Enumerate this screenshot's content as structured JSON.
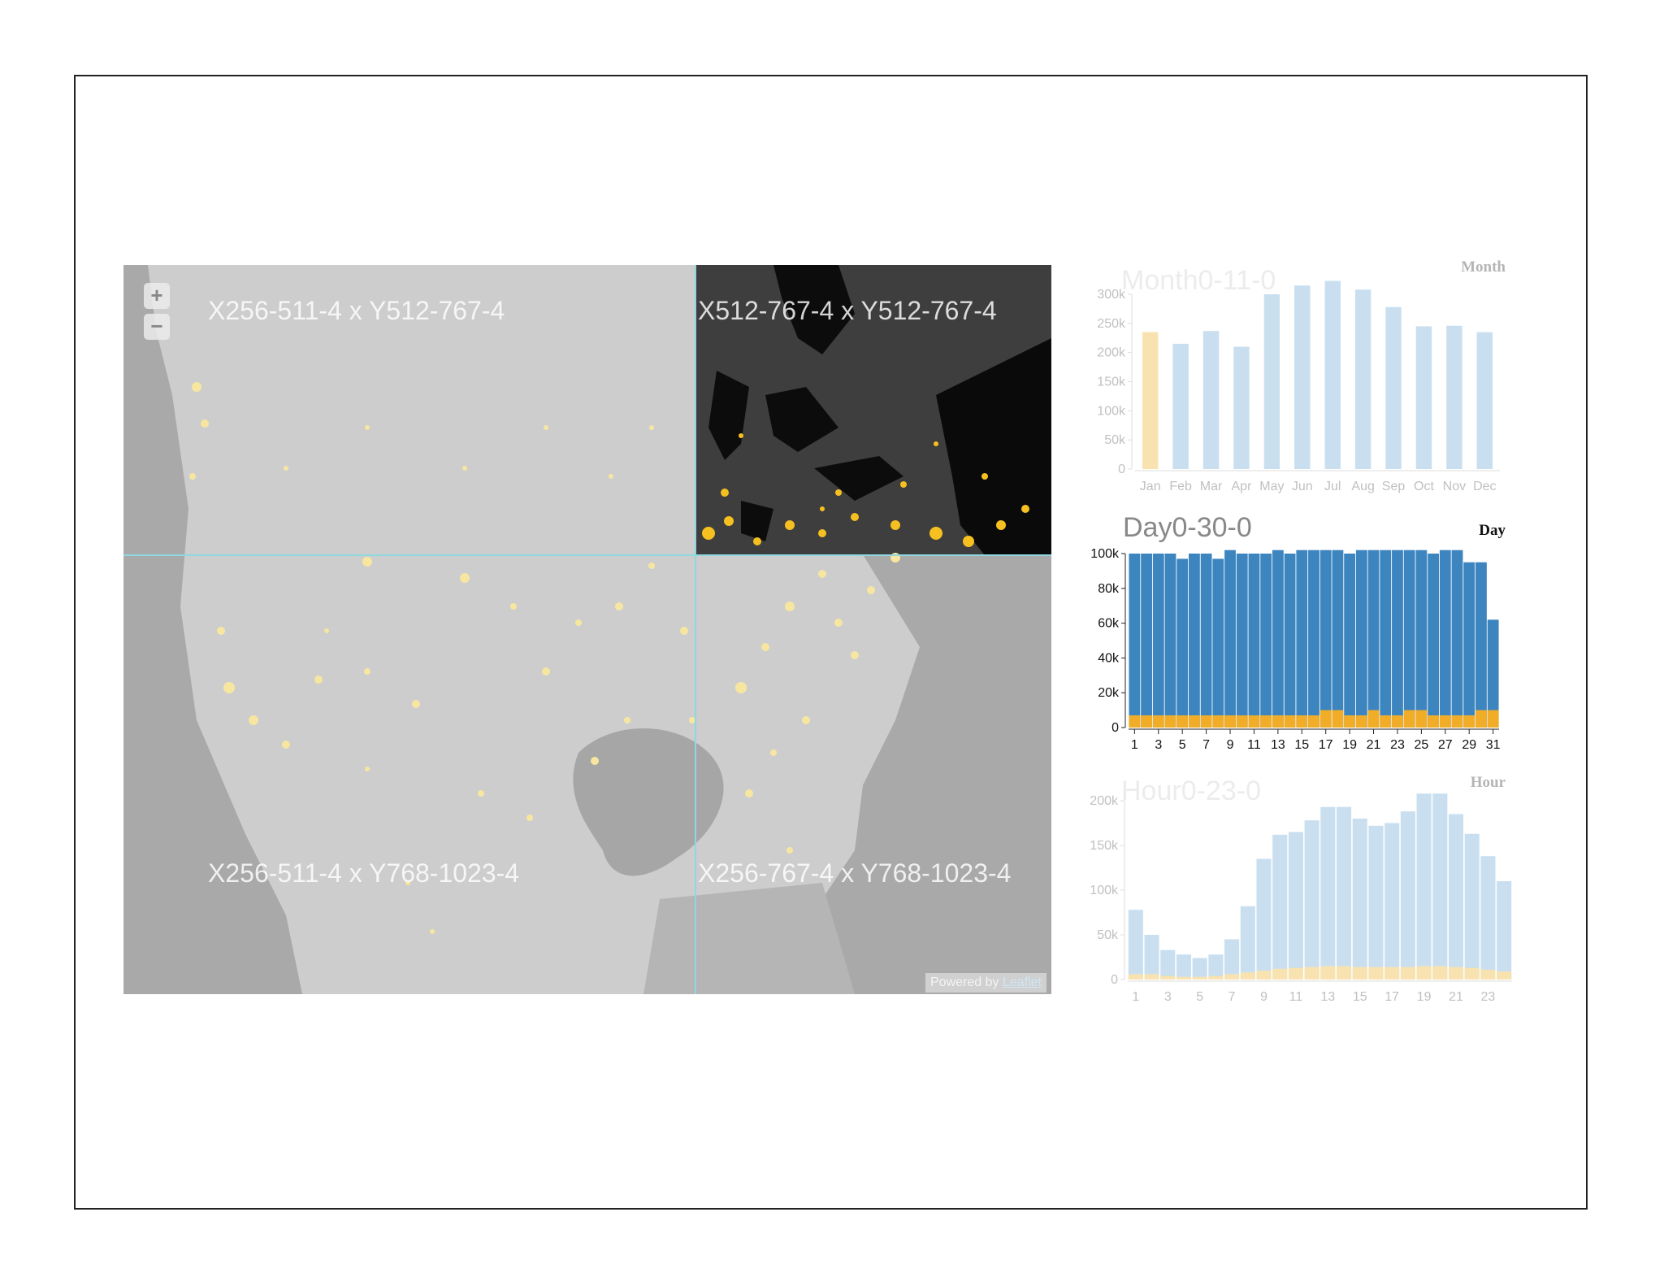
{
  "map": {
    "zoom_in": "+",
    "zoom_out": "−",
    "tiles": [
      {
        "label": "X256-511-4 x Y512-767-4"
      },
      {
        "label": "X512-767-4 x Y512-767-4"
      },
      {
        "label": "X256-511-4 x Y768-1023-4"
      },
      {
        "label": "X256-767-4 x Y768-1023-4"
      }
    ],
    "attribution_prefix": "Powered by",
    "attribution_link": "Leaflet"
  },
  "colors": {
    "map_land": "#c9c9c9",
    "map_water": "#9c9c9c",
    "selected_tile": "#3e3e3e",
    "grid_line": "#8fd8e0",
    "dots_faded": "#f7e6a0",
    "dots_active": "#f5c020",
    "bar_faded": "#c9dff0",
    "bar_highlight": "#f8e3b0",
    "bar_active": "#3d85bf",
    "bar_orange": "#f2ad28"
  },
  "chart_data": [
    {
      "type": "bar",
      "title": "Month0-11-0",
      "corner_label": "Month",
      "categories": [
        "Jan",
        "Feb",
        "Mar",
        "Apr",
        "May",
        "Jun",
        "Jul",
        "Aug",
        "Sep",
        "Oct",
        "Nov",
        "Dec"
      ],
      "values": [
        235000,
        215000,
        237000,
        210000,
        300000,
        315000,
        323000,
        308000,
        278000,
        245000,
        246000,
        235000
      ],
      "highlighted": [
        "Jan"
      ],
      "ylim": [
        0,
        300000
      ],
      "yticks": [
        "0",
        "50k",
        "100k",
        "150k",
        "200k",
        "250k",
        "300k"
      ],
      "grid": false
    },
    {
      "type": "bar",
      "title": "Day0-30-0",
      "corner_label": "Day",
      "categories": [
        1,
        2,
        3,
        4,
        5,
        6,
        7,
        8,
        9,
        10,
        11,
        12,
        13,
        14,
        15,
        16,
        17,
        18,
        19,
        20,
        21,
        22,
        23,
        24,
        25,
        26,
        27,
        28,
        29,
        30,
        31
      ],
      "series": [
        {
          "values": [
            100000,
            100000,
            100000,
            100000,
            97000,
            100000,
            100000,
            97000,
            102000,
            100000,
            100000,
            100000,
            102000,
            100000,
            102000,
            102000,
            102000,
            102000,
            100000,
            102000,
            102000,
            102000,
            102000,
            102000,
            102000,
            100000,
            102000,
            102000,
            95000,
            95000,
            62000
          ]
        },
        {
          "values": [
            7000,
            7000,
            7000,
            7000,
            7000,
            7000,
            7000,
            7000,
            7000,
            7000,
            7000,
            7000,
            7000,
            7000,
            7000,
            7000,
            10000,
            10000,
            7000,
            7000,
            10000,
            7000,
            7000,
            10000,
            10000,
            7000,
            7000,
            7000,
            7000,
            10000,
            10000
          ]
        }
      ],
      "xticks": [
        "1",
        "3",
        "5",
        "7",
        "9",
        "11",
        "13",
        "15",
        "17",
        "19",
        "21",
        "23",
        "25",
        "27",
        "29",
        "31"
      ],
      "ylim": [
        0,
        100000
      ],
      "yticks": [
        "0",
        "20k",
        "40k",
        "60k",
        "80k",
        "100k"
      ],
      "grid": false
    },
    {
      "type": "bar",
      "title": "Hour0-23-0",
      "corner_label": "Hour",
      "categories": [
        1,
        2,
        3,
        4,
        5,
        6,
        7,
        8,
        9,
        10,
        11,
        12,
        13,
        14,
        15,
        16,
        17,
        18,
        19,
        20,
        21,
        22,
        23,
        24
      ],
      "series": [
        {
          "values": [
            78000,
            50000,
            33000,
            28000,
            24000,
            28000,
            45000,
            82000,
            135000,
            162000,
            165000,
            178000,
            193000,
            193000,
            180000,
            172000,
            175000,
            188000,
            208000,
            208000,
            185000,
            163000,
            138000,
            110000
          ]
        },
        {
          "values": [
            6000,
            6000,
            4000,
            3000,
            3000,
            4000,
            6000,
            8000,
            10000,
            12000,
            13000,
            14000,
            15000,
            15000,
            14000,
            14000,
            14000,
            14000,
            15000,
            15000,
            14000,
            13000,
            11000,
            9000
          ]
        }
      ],
      "xticks": [
        "1",
        "3",
        "5",
        "7",
        "9",
        "11",
        "13",
        "15",
        "17",
        "19",
        "21",
        "23"
      ],
      "ylim": [
        0,
        200000
      ],
      "yticks": [
        "0",
        "50k",
        "100k",
        "150k",
        "200k"
      ],
      "grid": false
    }
  ]
}
